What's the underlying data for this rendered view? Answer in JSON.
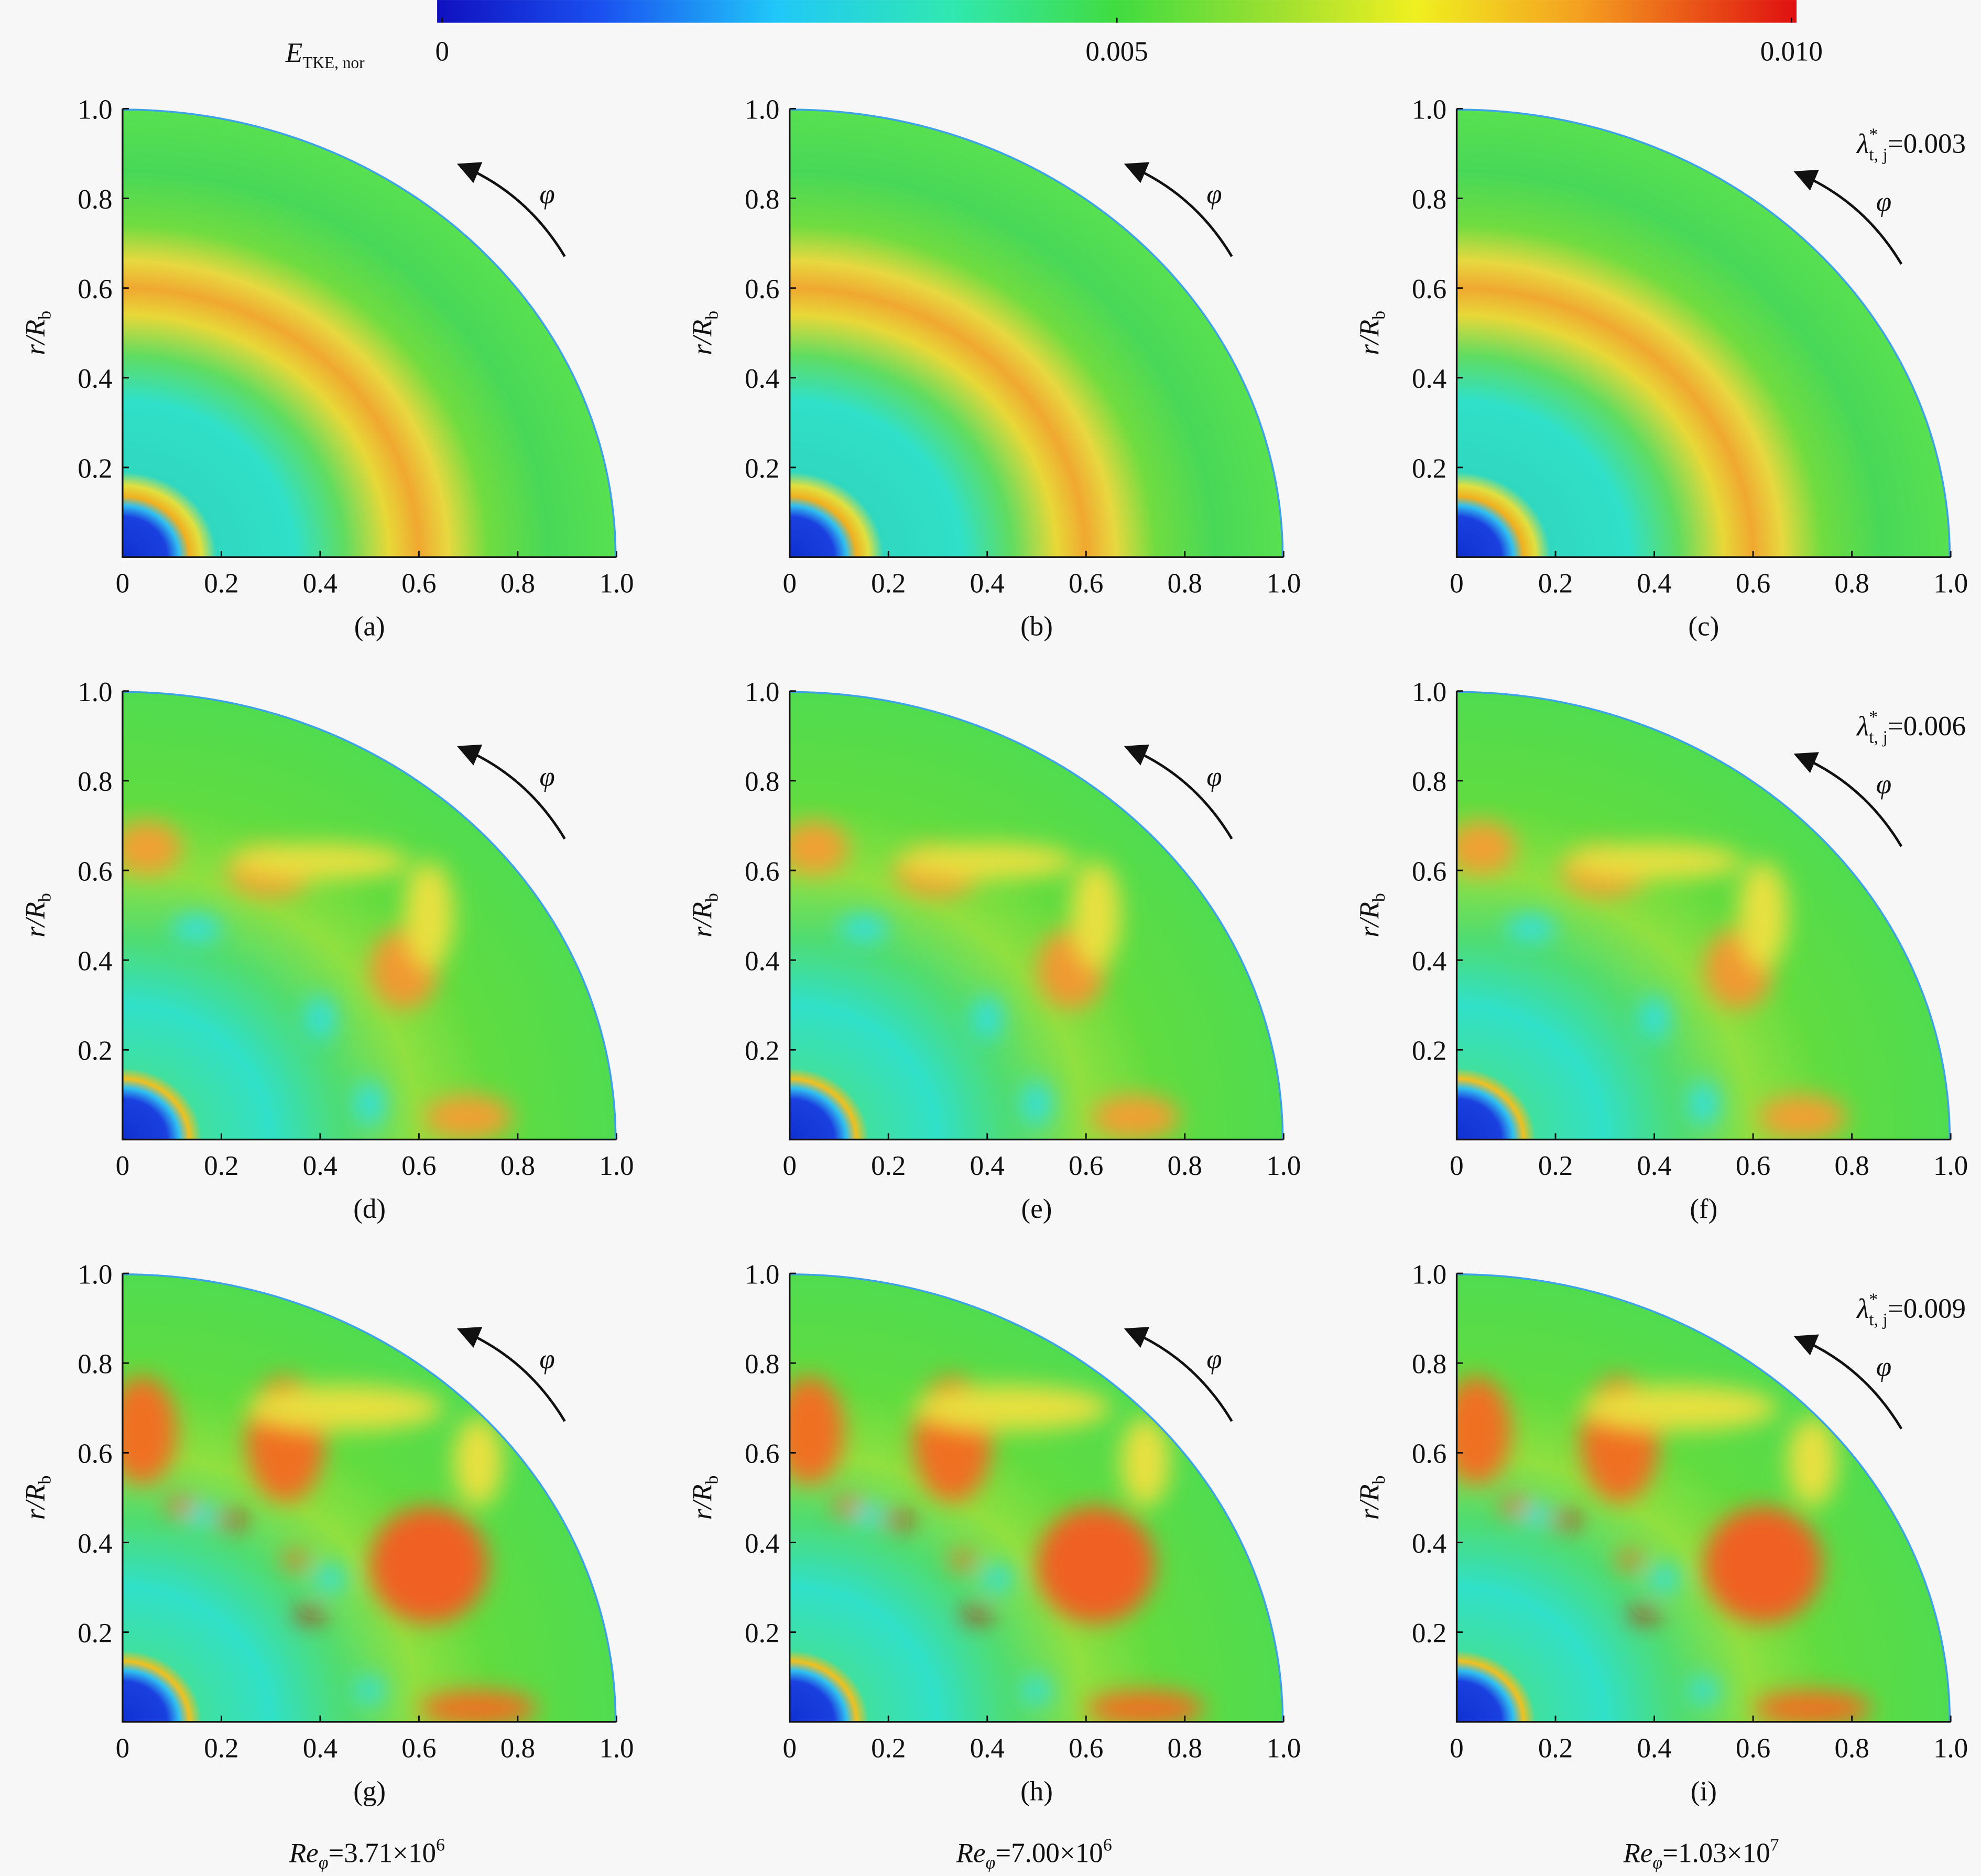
{
  "colorbar": {
    "label": {
      "main": "E",
      "sub": "TKE, nor"
    },
    "clim": [
      0,
      0.01
    ],
    "ticks": [
      0,
      0.005,
      {
        "value": 0.01,
        "label": "0.010"
      }
    ]
  },
  "chart_data": [
    {
      "type": "contour",
      "panel_label": "(a)",
      "arrow_label": "φ",
      "ylabel": {
        "main": "r/R",
        "sub": "b"
      },
      "xlim": [
        0,
        1
      ],
      "ylim": [
        0,
        1
      ],
      "xticks": [
        0,
        0.2,
        0.4,
        0.6,
        0.8,
        {
          "value": 1,
          "label": "1.0"
        }
      ],
      "yticks": [
        0.2,
        0.4,
        0.6,
        0.8,
        {
          "value": 1,
          "label": "1.0"
        }
      ]
    },
    {
      "type": "contour",
      "panel_label": "(b)",
      "arrow_label": "φ",
      "ylabel": {
        "main": "r/R",
        "sub": "b"
      },
      "xlim": [
        0,
        1
      ],
      "ylim": [
        0,
        1
      ],
      "xticks": [
        0,
        0.2,
        0.4,
        0.6,
        0.8,
        {
          "value": 1,
          "label": "1.0"
        }
      ],
      "yticks": [
        0.2,
        0.4,
        0.6,
        0.8,
        {
          "value": 1,
          "label": "1.0"
        }
      ]
    },
    {
      "type": "contour",
      "panel_label": "(c)",
      "arrow_label": "φ",
      "ylabel": {
        "main": "r/R",
        "sub": "b"
      },
      "xlim": [
        0,
        1
      ],
      "ylim": [
        0,
        1
      ],
      "xticks": [
        0,
        0.2,
        0.4,
        0.6,
        0.8,
        {
          "value": 1,
          "label": "1.0"
        }
      ],
      "yticks": [
        0.2,
        0.4,
        0.6,
        0.8,
        {
          "value": 1,
          "label": "1.0"
        }
      ]
    },
    {
      "type": "contour",
      "panel_label": "(d)",
      "arrow_label": "φ",
      "ylabel": {
        "main": "r/R",
        "sub": "b"
      },
      "xlim": [
        0,
        1
      ],
      "ylim": [
        0,
        1
      ],
      "xticks": [
        0,
        0.2,
        0.4,
        0.6,
        0.8,
        {
          "value": 1,
          "label": "1.0"
        }
      ],
      "yticks": [
        0.2,
        0.4,
        0.6,
        0.8,
        {
          "value": 1,
          "label": "1.0"
        }
      ]
    },
    {
      "type": "contour",
      "panel_label": "(e)",
      "arrow_label": "φ",
      "ylabel": {
        "main": "r/R",
        "sub": "b"
      },
      "xlim": [
        0,
        1
      ],
      "ylim": [
        0,
        1
      ],
      "xticks": [
        0,
        0.2,
        0.4,
        0.6,
        0.8,
        {
          "value": 1,
          "label": "1.0"
        }
      ],
      "yticks": [
        0.2,
        0.4,
        0.6,
        0.8,
        {
          "value": 1,
          "label": "1.0"
        }
      ]
    },
    {
      "type": "contour",
      "panel_label": "(f)",
      "arrow_label": "φ",
      "ylabel": {
        "main": "r/R",
        "sub": "b"
      },
      "xlim": [
        0,
        1
      ],
      "ylim": [
        0,
        1
      ],
      "xticks": [
        0,
        0.2,
        0.4,
        0.6,
        0.8,
        {
          "value": 1,
          "label": "1.0"
        }
      ],
      "yticks": [
        0.2,
        0.4,
        0.6,
        0.8,
        {
          "value": 1,
          "label": "1.0"
        }
      ]
    },
    {
      "type": "contour",
      "panel_label": "(g)",
      "arrow_label": "φ",
      "ylabel": {
        "main": "r/R",
        "sub": "b"
      },
      "xlim": [
        0,
        1
      ],
      "ylim": [
        0,
        1
      ],
      "xticks": [
        0,
        0.2,
        0.4,
        0.6,
        0.8,
        {
          "value": 1,
          "label": "1.0"
        }
      ],
      "yticks": [
        0.2,
        0.4,
        0.6,
        0.8,
        {
          "value": 1,
          "label": "1.0"
        }
      ]
    },
    {
      "type": "contour",
      "panel_label": "(h)",
      "arrow_label": "φ",
      "ylabel": {
        "main": "r/R",
        "sub": "b"
      },
      "xlim": [
        0,
        1
      ],
      "ylim": [
        0,
        1
      ],
      "xticks": [
        0,
        0.2,
        0.4,
        0.6,
        0.8,
        {
          "value": 1,
          "label": "1.0"
        }
      ],
      "yticks": [
        0.2,
        0.4,
        0.6,
        0.8,
        {
          "value": 1,
          "label": "1.0"
        }
      ]
    },
    {
      "type": "contour",
      "panel_label": "(i)",
      "arrow_label": "φ",
      "ylabel": {
        "main": "r/R",
        "sub": "b"
      },
      "xlim": [
        0,
        1
      ],
      "ylim": [
        0,
        1
      ],
      "xticks": [
        0,
        0.2,
        0.4,
        0.6,
        0.8,
        {
          "value": 1,
          "label": "1.0"
        }
      ],
      "yticks": [
        0.2,
        0.4,
        0.6,
        0.8,
        {
          "value": 1,
          "label": "1.0"
        }
      ]
    }
  ],
  "row_annotations": [
    {
      "symbol": "λ",
      "sup": "*",
      "sub": "t, j",
      "text": "=0.003"
    },
    {
      "symbol": "λ",
      "sup": "*",
      "sub": "t, j",
      "text": "=0.006"
    },
    {
      "symbol": "λ",
      "sup": "*",
      "sub": "t, j",
      "text": "=0.009"
    }
  ],
  "column_annotations": [
    {
      "main": "Re",
      "sub": "φ",
      "text": "=3.71×10",
      "sup": "6"
    },
    {
      "main": "Re",
      "sub": "φ",
      "text": "=7.00×10",
      "sup": "6"
    },
    {
      "main": "Re",
      "sub": "φ",
      "text": "=1.03×10",
      "sup": "7"
    }
  ]
}
